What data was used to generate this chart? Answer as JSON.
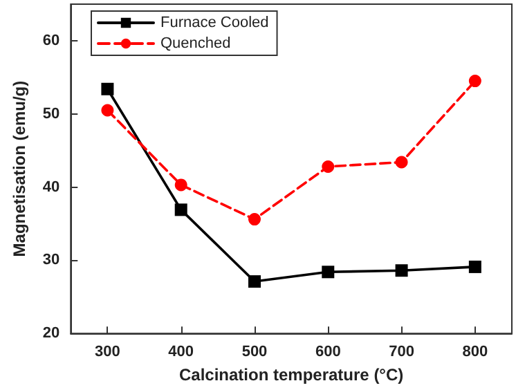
{
  "chart_data": {
    "type": "line",
    "xlabel": "Calcination temperature (°C)",
    "ylabel": "Magnetisation (emu/g)",
    "x": [
      300,
      400,
      500,
      600,
      700,
      800
    ],
    "series": [
      {
        "name": "Furnace Cooled",
        "color": "#000000",
        "values": [
          53.4,
          36.9,
          27.1,
          28.4,
          28.6,
          29.1
        ],
        "marker": "square",
        "line_style": "solid"
      },
      {
        "name": "Quenched",
        "color": "#ff0000",
        "values": [
          50.5,
          40.3,
          35.6,
          42.8,
          43.4,
          54.5
        ],
        "marker": "circle",
        "line_style": "dashed"
      }
    ],
    "xlim": [
      250,
      850
    ],
    "xticks": [
      300,
      400,
      500,
      600,
      700,
      800
    ],
    "ylim": [
      20,
      65
    ],
    "yticks": [
      20,
      30,
      40,
      50,
      60
    ],
    "grid": false,
    "legend": "top left"
  }
}
